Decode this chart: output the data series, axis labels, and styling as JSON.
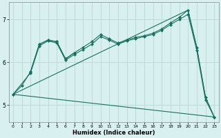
{
  "xlabel": "Humidex (Indice chaleur)",
  "bg_color": "#d8f0f0",
  "grid_color": "#b8d8d8",
  "line_color": "#1a7060",
  "xlim": [
    -0.5,
    23.5
  ],
  "ylim": [
    4.6,
    7.4
  ],
  "yticks": [
    5,
    6,
    7
  ],
  "xticks": [
    0,
    1,
    2,
    3,
    4,
    5,
    6,
    7,
    8,
    9,
    10,
    11,
    12,
    13,
    14,
    15,
    16,
    17,
    18,
    19,
    20,
    21,
    22,
    23
  ],
  "series": [
    {
      "x": [
        0,
        1,
        2,
        3,
        4,
        5,
        6,
        7,
        8,
        9,
        10,
        11,
        12,
        13,
        14,
        15,
        16,
        17,
        18,
        19,
        20,
        21,
        22,
        23
      ],
      "y": [
        5.25,
        5.45,
        5.78,
        6.42,
        6.52,
        6.48,
        6.08,
        6.22,
        6.35,
        6.48,
        6.65,
        6.55,
        6.45,
        6.52,
        6.58,
        6.62,
        6.68,
        6.78,
        6.92,
        7.05,
        7.22,
        6.35,
        5.18,
        4.72
      ],
      "markers": true
    },
    {
      "x": [
        0,
        2,
        3,
        4,
        5,
        6,
        7,
        8,
        9,
        10,
        11,
        12,
        13,
        14,
        15,
        16,
        17,
        18,
        19,
        20,
        21,
        22,
        23
      ],
      "y": [
        5.25,
        5.75,
        6.38,
        6.5,
        6.45,
        6.05,
        6.18,
        6.3,
        6.42,
        6.6,
        6.52,
        6.42,
        6.5,
        6.55,
        6.6,
        6.65,
        6.75,
        6.88,
        7.0,
        7.12,
        6.28,
        5.12,
        4.72
      ],
      "markers": true
    },
    {
      "x": [
        0,
        20,
        21,
        22,
        23
      ],
      "y": [
        5.25,
        7.22,
        6.35,
        5.18,
        4.72
      ],
      "markers": false
    },
    {
      "x": [
        0,
        23
      ],
      "y": [
        5.25,
        4.72
      ],
      "markers": false
    },
    {
      "x": [
        2,
        3,
        4,
        5,
        6,
        7
      ],
      "y": [
        5.78,
        6.42,
        6.52,
        6.48,
        6.08,
        6.22
      ],
      "markers": true
    }
  ]
}
